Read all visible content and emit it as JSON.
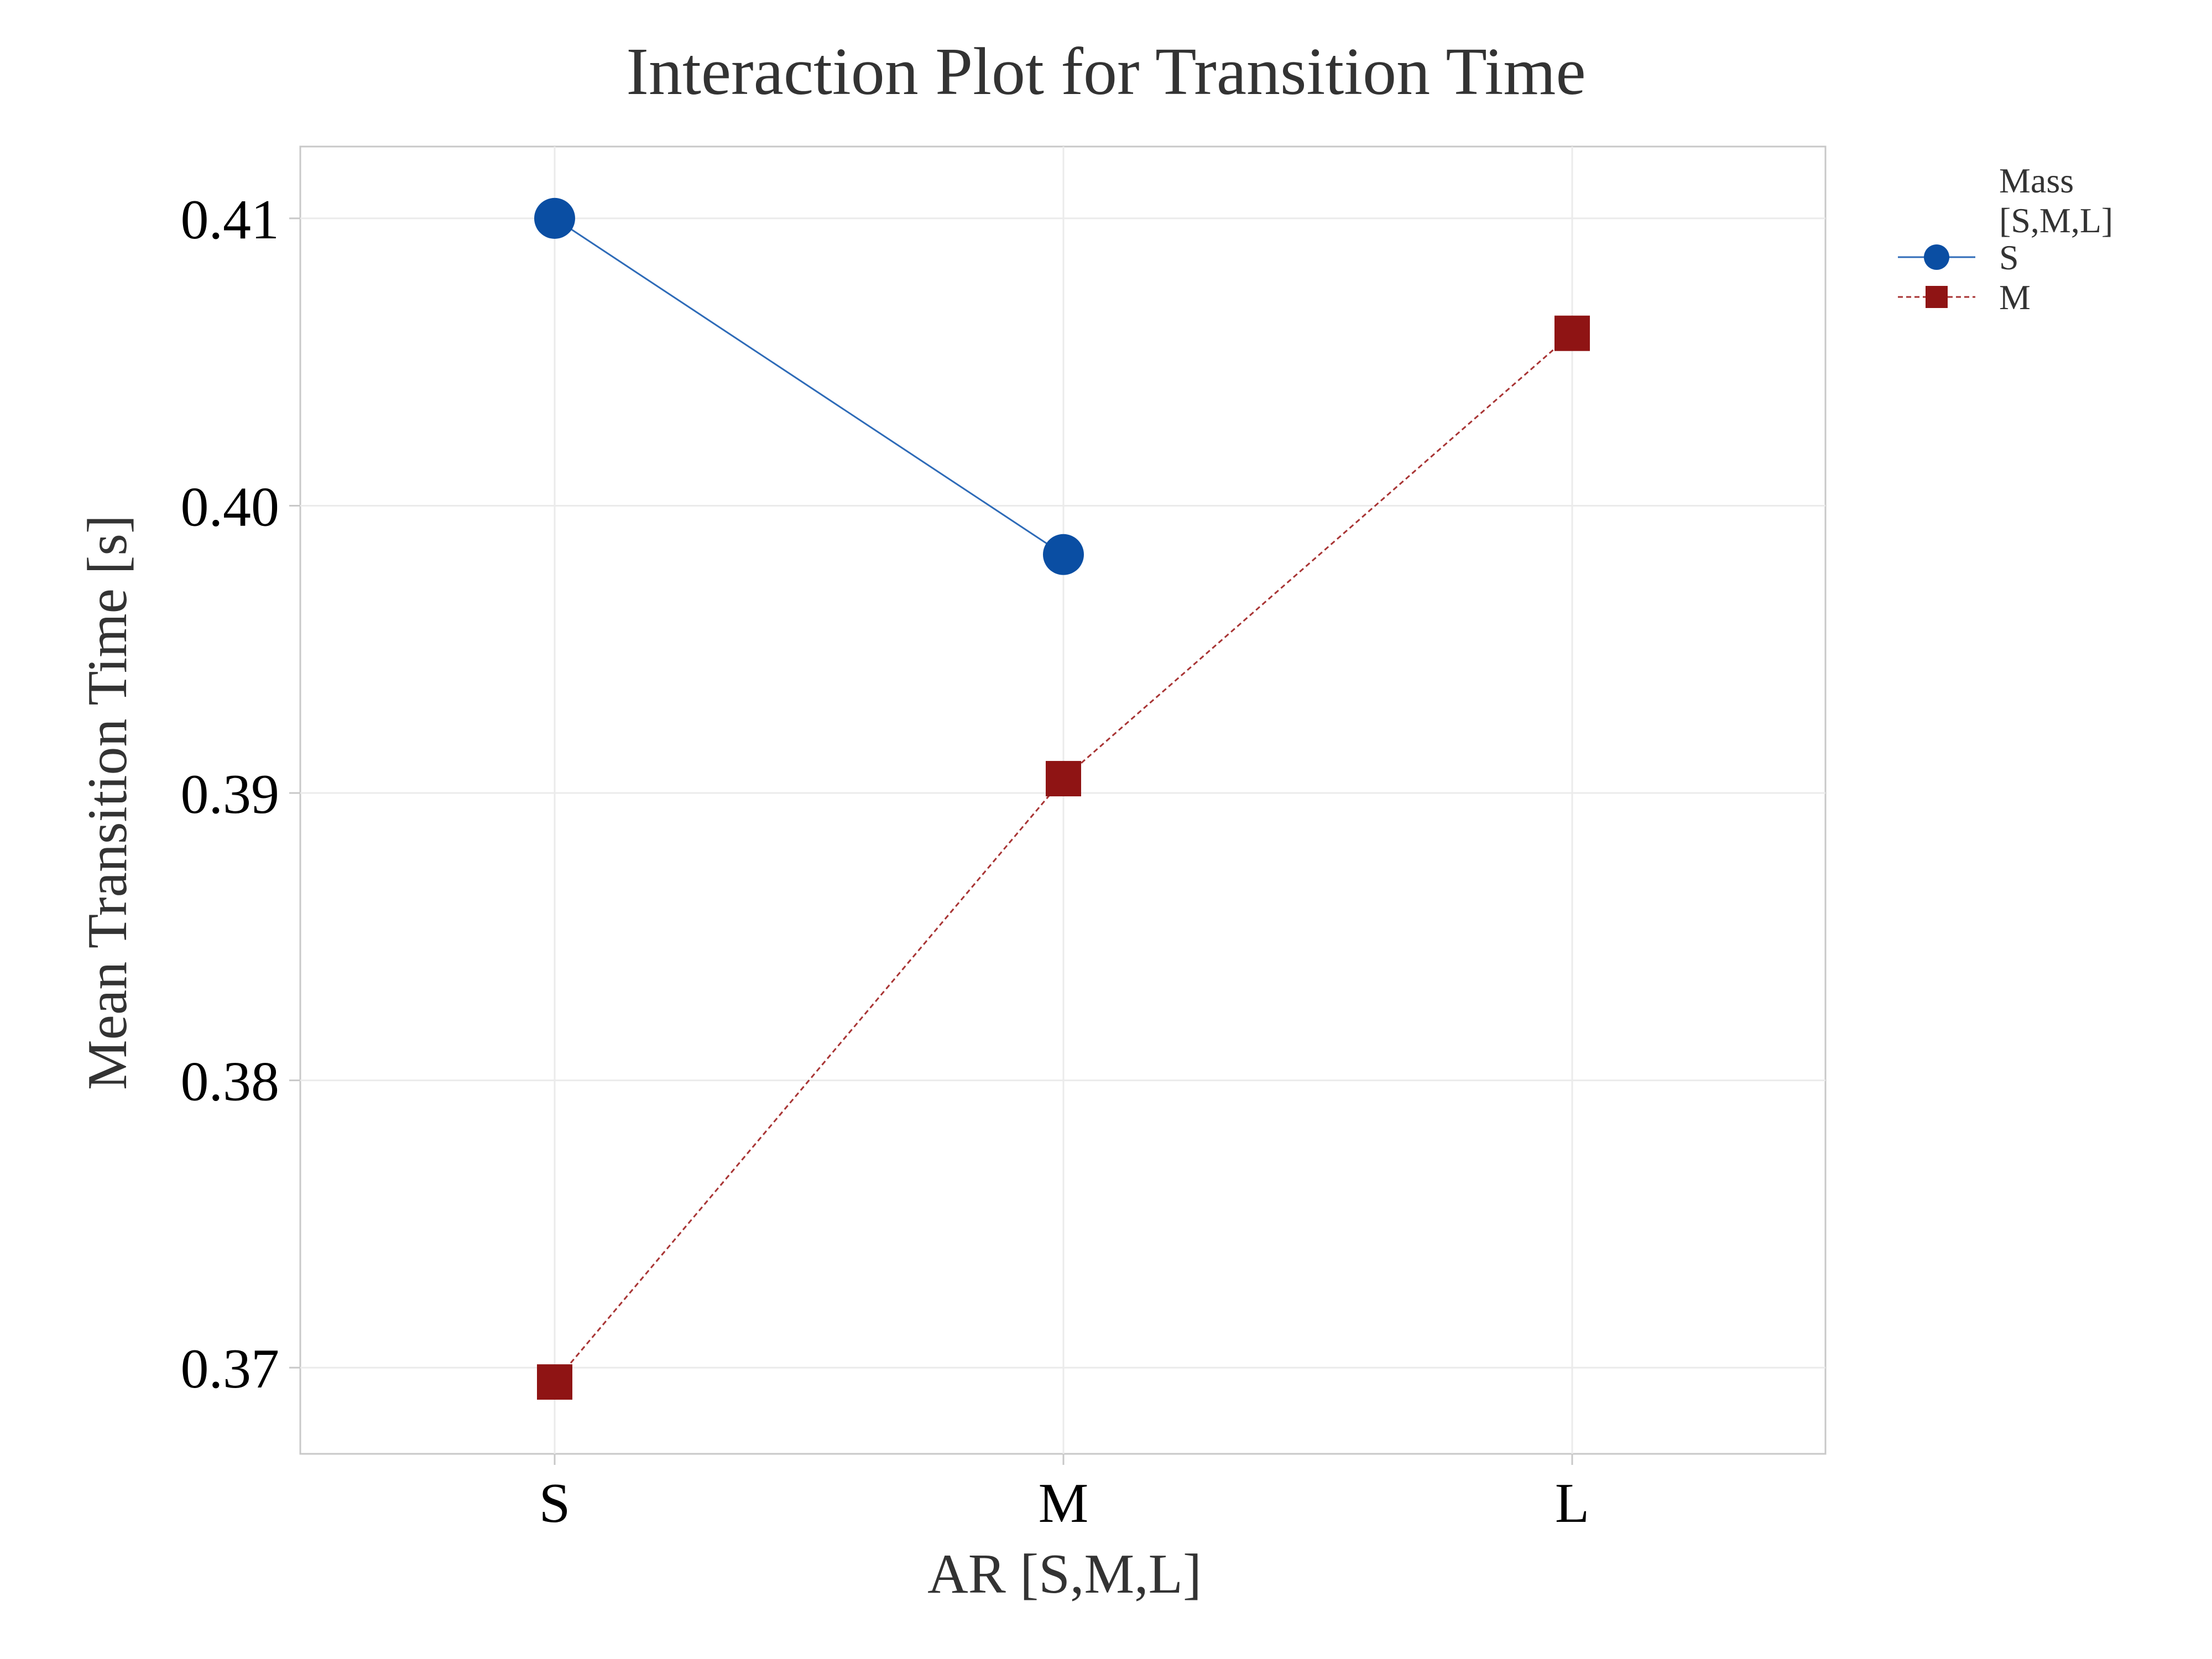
{
  "chart_data": {
    "type": "line",
    "title": "Interaction Plot for Transition Time",
    "xlabel": "AR [S,M,L]",
    "ylabel": "Mean Transition Time [s]",
    "categories": [
      "S",
      "M",
      "L"
    ],
    "ylim": [
      0.367,
      0.4125
    ],
    "yticks": [
      "0.37",
      "0.38",
      "0.39",
      "0.40",
      "0.41"
    ],
    "grid": true,
    "legend": {
      "title_lines": [
        "Mass",
        "[S,M,L]"
      ],
      "placement": "top-right"
    },
    "series": [
      {
        "name": "S",
        "color": "#0a4ea3",
        "line_color": "#2e6bb8",
        "marker": "circle",
        "line_style": "solid",
        "values": [
          0.41,
          0.3983,
          null
        ]
      },
      {
        "name": "M",
        "color": "#8f1414",
        "line_color": "#a83434",
        "marker": "square",
        "line_style": "dotted",
        "values": [
          0.3695,
          0.3905,
          0.406
        ]
      }
    ]
  }
}
